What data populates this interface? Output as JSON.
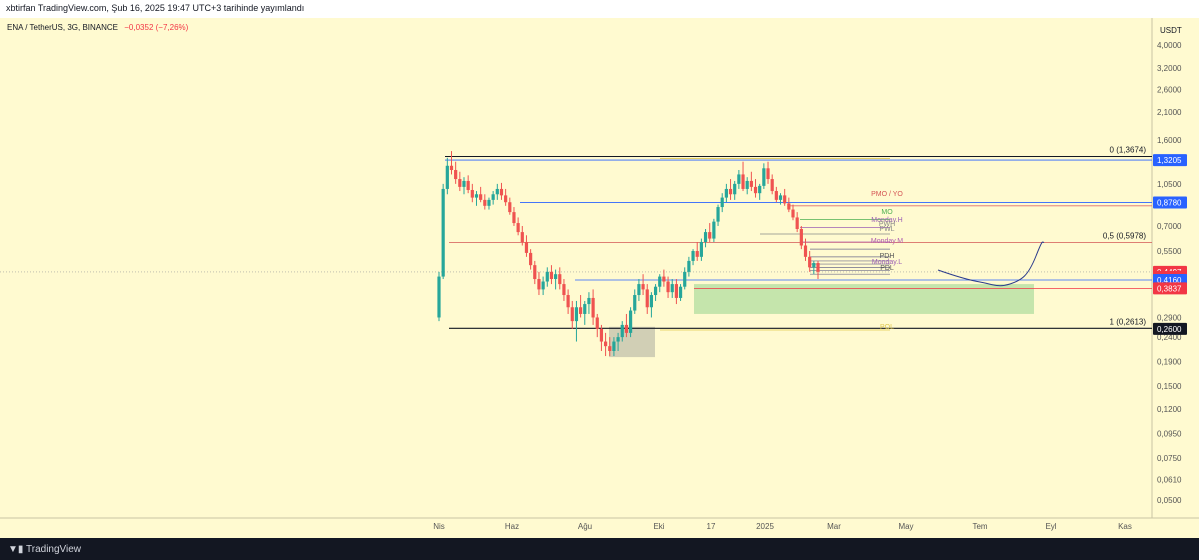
{
  "header": {
    "published": "xbtirfan TradingView.com, Şub 16, 2025 19:47 UTC+3 tarihinde yayımlandı"
  },
  "legend": {
    "symbol": "ENA / TetherUS, 3G, BINANCE",
    "change": "−0,0352 (−7,26%)"
  },
  "footer": {
    "brand": "TradingView"
  },
  "colors": {
    "background": "#fffad0",
    "up": "#26a69a",
    "down": "#ef5350",
    "blue_level": "#2962ff",
    "red_level": "#f23645",
    "black_level": "#131722",
    "green_zone": "#b7e0a3",
    "projection": "#2a3a8c"
  },
  "chart_data": {
    "type": "candlestick",
    "symbol": "ENA / TetherUS",
    "interval": "3G",
    "exchange": "BINANCE",
    "y_scale": "log",
    "ylim": [
      0.048,
      4.6
    ],
    "currency_label": "USDT",
    "y_ticks": [
      "4,0000",
      "3,2000",
      "2,6000",
      "2,1000",
      "1,6000",
      "1,0500",
      "0,7000",
      "0,5500",
      "0,4500",
      "0,2900",
      "0,2400",
      "0,1900",
      "0,1500",
      "0,1200",
      "0,0950",
      "0,0750",
      "0,0610",
      "0,0500"
    ],
    "x_ticks": [
      "Nis",
      "Haz",
      "Ağu",
      "Eki",
      "17",
      "2025",
      "Mar",
      "May",
      "Tem",
      "Eyl",
      "Kas"
    ],
    "price_labels": [
      {
        "text": "1,3205",
        "value": 1.3205,
        "color": "#2962ff"
      },
      {
        "text": "0,8780",
        "value": 0.878,
        "color": "#2962ff"
      },
      {
        "text": "0,4497",
        "value": 0.4497,
        "color": "#f23645"
      },
      {
        "text": "1d 8h",
        "value": 0.428,
        "color": "#f23645"
      },
      {
        "text": "0,4160",
        "value": 0.416,
        "color": "#2962ff"
      },
      {
        "text": "0,3837",
        "value": 0.3837,
        "color": "#f23645"
      },
      {
        "text": "0,2600",
        "value": 0.26,
        "color": "#131722"
      }
    ],
    "fib_levels": [
      {
        "label": "0 (1,3674)",
        "value": 1.3674
      },
      {
        "label": "0,5 (0,5978)",
        "value": 0.5978
      },
      {
        "label": "1 (0,2613)",
        "value": 0.2613
      }
    ],
    "annotations": [
      "PMO / YO",
      "MO",
      "Monday.H",
      "PWH",
      "PWL",
      "Monday.M",
      "PDH",
      "Monday.L",
      "PDL",
      "POL"
    ],
    "candles_ohlc": [
      [
        0.29,
        0.45,
        0.28,
        0.43
      ],
      [
        0.43,
        1.05,
        0.42,
        1.0
      ],
      [
        1.0,
        1.35,
        0.95,
        1.25
      ],
      [
        1.25,
        1.44,
        1.15,
        1.2
      ],
      [
        1.2,
        1.3,
        1.05,
        1.1
      ],
      [
        1.1,
        1.18,
        0.98,
        1.02
      ],
      [
        1.02,
        1.12,
        0.95,
        1.08
      ],
      [
        1.08,
        1.14,
        0.96,
        0.99
      ],
      [
        0.99,
        1.05,
        0.88,
        0.92
      ],
      [
        0.92,
        0.98,
        0.85,
        0.95
      ],
      [
        0.95,
        1.02,
        0.88,
        0.9
      ],
      [
        0.9,
        0.95,
        0.82,
        0.85
      ],
      [
        0.85,
        0.92,
        0.82,
        0.9
      ],
      [
        0.9,
        0.98,
        0.86,
        0.95
      ],
      [
        0.95,
        1.05,
        0.9,
        1.0
      ],
      [
        1.0,
        1.06,
        0.9,
        0.94
      ],
      [
        0.94,
        1.0,
        0.85,
        0.88
      ],
      [
        0.88,
        0.92,
        0.78,
        0.8
      ],
      [
        0.8,
        0.84,
        0.7,
        0.72
      ],
      [
        0.72,
        0.76,
        0.64,
        0.66
      ],
      [
        0.66,
        0.7,
        0.58,
        0.6
      ],
      [
        0.6,
        0.64,
        0.52,
        0.54
      ],
      [
        0.54,
        0.56,
        0.46,
        0.48
      ],
      [
        0.48,
        0.5,
        0.4,
        0.42
      ],
      [
        0.42,
        0.45,
        0.36,
        0.38
      ],
      [
        0.38,
        0.43,
        0.36,
        0.41
      ],
      [
        0.41,
        0.47,
        0.39,
        0.45
      ],
      [
        0.45,
        0.48,
        0.4,
        0.42
      ],
      [
        0.42,
        0.46,
        0.38,
        0.44
      ],
      [
        0.44,
        0.47,
        0.38,
        0.4
      ],
      [
        0.4,
        0.42,
        0.34,
        0.36
      ],
      [
        0.36,
        0.38,
        0.3,
        0.32
      ],
      [
        0.32,
        0.34,
        0.26,
        0.28
      ],
      [
        0.28,
        0.34,
        0.23,
        0.32
      ],
      [
        0.32,
        0.36,
        0.29,
        0.3
      ],
      [
        0.3,
        0.34,
        0.27,
        0.33
      ],
      [
        0.33,
        0.37,
        0.3,
        0.35
      ],
      [
        0.35,
        0.38,
        0.27,
        0.29
      ],
      [
        0.29,
        0.3,
        0.24,
        0.26
      ],
      [
        0.26,
        0.27,
        0.21,
        0.23
      ],
      [
        0.23,
        0.25,
        0.2,
        0.22
      ],
      [
        0.22,
        0.24,
        0.2,
        0.21
      ],
      [
        0.21,
        0.24,
        0.2,
        0.23
      ],
      [
        0.23,
        0.25,
        0.21,
        0.24
      ],
      [
        0.24,
        0.28,
        0.23,
        0.27
      ],
      [
        0.27,
        0.3,
        0.24,
        0.25
      ],
      [
        0.25,
        0.32,
        0.24,
        0.31
      ],
      [
        0.31,
        0.38,
        0.3,
        0.36
      ],
      [
        0.36,
        0.42,
        0.34,
        0.4
      ],
      [
        0.4,
        0.44,
        0.36,
        0.38
      ],
      [
        0.38,
        0.4,
        0.3,
        0.32
      ],
      [
        0.32,
        0.37,
        0.29,
        0.36
      ],
      [
        0.36,
        0.4,
        0.34,
        0.39
      ],
      [
        0.39,
        0.44,
        0.37,
        0.43
      ],
      [
        0.43,
        0.46,
        0.39,
        0.41
      ],
      [
        0.41,
        0.43,
        0.35,
        0.37
      ],
      [
        0.37,
        0.42,
        0.35,
        0.4
      ],
      [
        0.4,
        0.42,
        0.33,
        0.35
      ],
      [
        0.35,
        0.4,
        0.34,
        0.39
      ],
      [
        0.39,
        0.47,
        0.38,
        0.45
      ],
      [
        0.45,
        0.52,
        0.43,
        0.5
      ],
      [
        0.5,
        0.56,
        0.48,
        0.55
      ],
      [
        0.55,
        0.6,
        0.5,
        0.52
      ],
      [
        0.52,
        0.62,
        0.5,
        0.6
      ],
      [
        0.6,
        0.68,
        0.57,
        0.66
      ],
      [
        0.66,
        0.72,
        0.6,
        0.62
      ],
      [
        0.62,
        0.75,
        0.6,
        0.73
      ],
      [
        0.73,
        0.86,
        0.7,
        0.84
      ],
      [
        0.84,
        0.96,
        0.8,
        0.92
      ],
      [
        0.92,
        1.05,
        0.88,
        1.0
      ],
      [
        1.0,
        1.1,
        0.9,
        0.95
      ],
      [
        0.95,
        1.08,
        0.9,
        1.05
      ],
      [
        1.05,
        1.2,
        1.0,
        1.15
      ],
      [
        1.15,
        1.3,
        0.98,
        1.0
      ],
      [
        1.0,
        1.12,
        0.95,
        1.08
      ],
      [
        1.08,
        1.18,
        0.98,
        1.02
      ],
      [
        1.02,
        1.1,
        0.92,
        0.96
      ],
      [
        0.96,
        1.05,
        0.9,
        1.03
      ],
      [
        1.03,
        1.28,
        1.0,
        1.22
      ],
      [
        1.22,
        1.3,
        1.05,
        1.1
      ],
      [
        1.1,
        1.15,
        0.95,
        0.98
      ],
      [
        0.98,
        1.02,
        0.88,
        0.9
      ],
      [
        0.9,
        0.96,
        0.86,
        0.94
      ],
      [
        0.94,
        1.0,
        0.85,
        0.87
      ],
      [
        0.87,
        0.92,
        0.8,
        0.82
      ],
      [
        0.82,
        0.86,
        0.74,
        0.76
      ],
      [
        0.76,
        0.8,
        0.66,
        0.68
      ],
      [
        0.68,
        0.7,
        0.56,
        0.58
      ],
      [
        0.58,
        0.62,
        0.5,
        0.52
      ],
      [
        0.52,
        0.55,
        0.45,
        0.47
      ],
      [
        0.47,
        0.5,
        0.44,
        0.49
      ],
      [
        0.49,
        0.5,
        0.42,
        0.45
      ]
    ]
  }
}
